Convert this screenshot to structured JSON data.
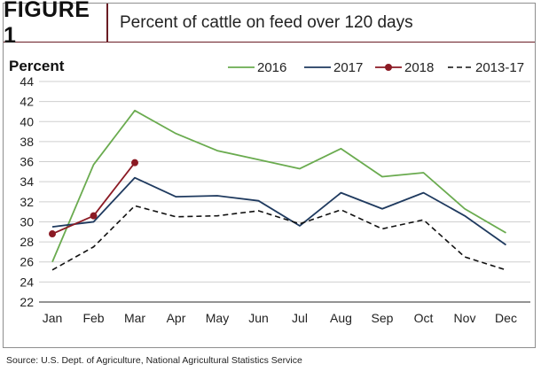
{
  "figure": {
    "label": "FIGURE 1",
    "title": "Percent of cattle on feed over 120 days"
  },
  "source": "Source: U.S. Dept. of Agriculture, National Agricultural Statistics Service",
  "chart_data": {
    "type": "line",
    "title": "Percent of cattle on feed over 120 days",
    "ylabel": "Percent",
    "xlabel": "",
    "ylim": [
      22,
      44
    ],
    "yticks": [
      22,
      24,
      26,
      28,
      30,
      32,
      34,
      36,
      38,
      40,
      42,
      44
    ],
    "categories": [
      "Jan",
      "Feb",
      "Mar",
      "Apr",
      "May",
      "Jun",
      "Jul",
      "Aug",
      "Sep",
      "Oct",
      "Nov",
      "Dec"
    ],
    "grid": true,
    "legend_position": "top",
    "series": [
      {
        "name": "2016",
        "color": "#6aab4f",
        "style": "solid",
        "values": [
          26.0,
          35.7,
          41.1,
          38.8,
          37.1,
          36.2,
          35.3,
          37.3,
          34.5,
          34.9,
          31.3,
          28.9
        ]
      },
      {
        "name": "2017",
        "color": "#1f3a5f",
        "style": "solid",
        "values": [
          29.5,
          30.0,
          34.4,
          32.5,
          32.6,
          32.1,
          29.6,
          32.9,
          31.3,
          32.9,
          30.6,
          27.7
        ]
      },
      {
        "name": "2018",
        "color": "#8b1a24",
        "style": "solid-markers",
        "values": [
          28.8,
          30.6,
          35.9,
          null,
          null,
          null,
          null,
          null,
          null,
          null,
          null,
          null
        ]
      },
      {
        "name": "2013-17",
        "color": "#111111",
        "style": "dashed",
        "values": [
          25.2,
          27.5,
          31.6,
          30.5,
          30.6,
          31.1,
          29.8,
          31.2,
          29.3,
          30.2,
          26.5,
          25.2
        ]
      }
    ]
  }
}
